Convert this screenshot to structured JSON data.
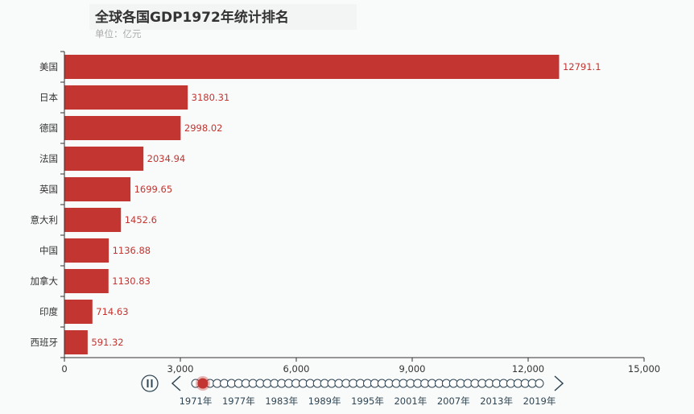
{
  "title": "全球各国GDP1972年统计排名",
  "subtitle": "单位：亿元",
  "colors": {
    "bar": "#c23531",
    "label": "#c23531",
    "axis": "#333333",
    "grid": "#cccccc",
    "timeline_track": "#304654",
    "timeline_checkpoint": "#c23531"
  },
  "chart_data": {
    "type": "bar",
    "orientation": "horizontal",
    "categories": [
      "美国",
      "日本",
      "德国",
      "法国",
      "英国",
      "意大利",
      "中国",
      "加拿大",
      "印度",
      "西班牙"
    ],
    "values": [
      12791.1,
      3180.31,
      2998.02,
      2034.94,
      1699.65,
      1452.6,
      1136.88,
      1130.83,
      714.63,
      591.32
    ],
    "value_labels": [
      "12791.1",
      "3180.31",
      "2998.02",
      "2034.94",
      "1699.65",
      "1452.6",
      "1136.88",
      "1130.83",
      "714.63",
      "591.32"
    ],
    "xlim": [
      0,
      15000
    ],
    "x_ticks": [
      0,
      3000,
      6000,
      9000,
      12000,
      15000
    ],
    "x_tick_labels": [
      "0",
      "3,000",
      "6,000",
      "9,000",
      "12,000",
      "15,000"
    ],
    "grid": false
  },
  "timeline": {
    "labels": [
      "1971年",
      "1977年",
      "1983年",
      "1989年",
      "1995年",
      "2001年",
      "2007年",
      "2013年",
      "2019年"
    ],
    "point_count": 49,
    "current_index": 1,
    "play_icon": "pause-icon",
    "prev_icon": "chevron-left-icon",
    "next_icon": "chevron-right-icon"
  }
}
